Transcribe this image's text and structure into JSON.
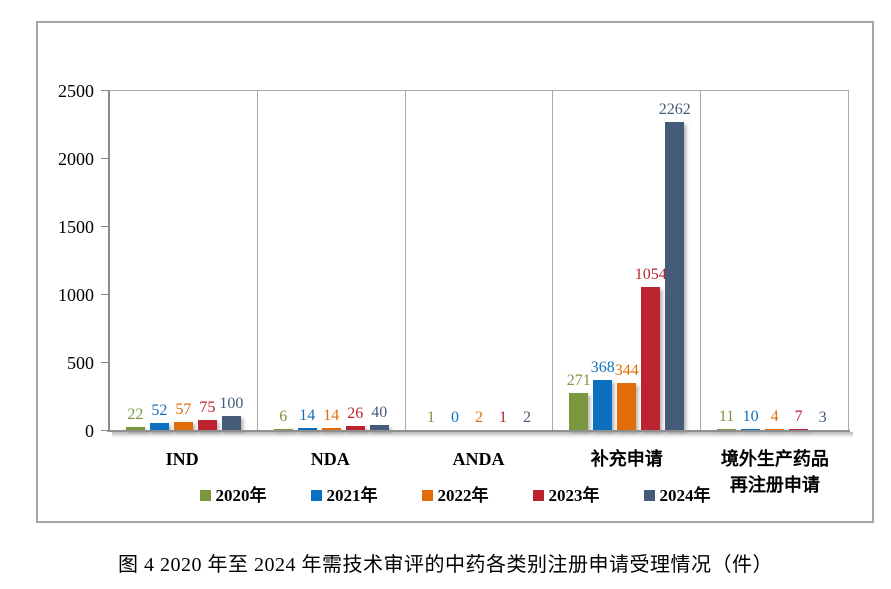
{
  "chart_data": {
    "type": "bar",
    "title": "",
    "categories": [
      "IND",
      "NDA",
      "ANDA",
      "补充申请",
      "境外生产药品\n再注册申请"
    ],
    "series": [
      {
        "name": "2020年",
        "color": "#7A973F",
        "values": [
          22,
          6,
          1,
          271,
          11
        ]
      },
      {
        "name": "2021年",
        "color": "#0C70C0",
        "values": [
          52,
          14,
          0,
          368,
          10
        ]
      },
      {
        "name": "2022年",
        "color": "#E36C0A",
        "values": [
          57,
          14,
          2,
          344,
          4
        ]
      },
      {
        "name": "2023年",
        "color": "#BC2330",
        "values": [
          75,
          26,
          1,
          1054,
          7
        ]
      },
      {
        "name": "2024年",
        "color": "#445C78",
        "values": [
          100,
          40,
          2,
          2262,
          3
        ]
      }
    ],
    "ylabel": "",
    "xlabel": "",
    "ylim": [
      0,
      2500
    ],
    "yticks": [
      0,
      500,
      1000,
      1500,
      2000,
      2500
    ],
    "grid": "vertical-category-separators-only",
    "legend_position": "bottom",
    "data_labels": "above-bars-colored-to-match-series"
  },
  "caption": "图 4  2020 年至 2024 年需技术审评的中药各类别注册申请受理情况（件）"
}
